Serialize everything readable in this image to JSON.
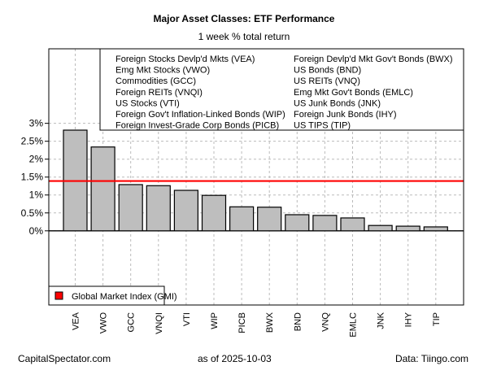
{
  "chart_data": {
    "type": "bar",
    "title": "Major Asset Classes: ETF Performance",
    "subtitle": "1 week % total return",
    "categories": [
      "VEA",
      "VWO",
      "GCC",
      "VNQI",
      "VTI",
      "WIP",
      "PICB",
      "BWX",
      "BND",
      "VNQ",
      "EMLC",
      "JNK",
      "IHY",
      "TIP"
    ],
    "values": [
      2.81,
      2.34,
      1.29,
      1.26,
      1.13,
      0.99,
      0.67,
      0.66,
      0.45,
      0.43,
      0.36,
      0.15,
      0.13,
      0.11
    ],
    "ylim": [
      -2.07,
      5.08
    ],
    "yticks": [
      0,
      0.5,
      1,
      1.5,
      2,
      2.5,
      3
    ],
    "ytick_labels": [
      "0%",
      "0.5%",
      "1%",
      "1.5%",
      "2%",
      "2.5%",
      "3%"
    ],
    "grid": true,
    "bar_color": "#bebebe",
    "reference_line": {
      "name": "Global Market Index (GMI)",
      "value": 1.39,
      "color": "#ff0000"
    },
    "legend_left": [
      "Foreign Stocks Devlp'd Mkts (VEA)",
      "Emg Mkt Stocks (VWO)",
      "Commodities (GCC)",
      "Foreign REITs (VNQI)",
      "US Stocks (VTI)",
      "Foreign Gov't Inflation-Linked Bonds (WIP)",
      "Foreign Invest-Grade Corp Bonds (PICB)"
    ],
    "legend_right": [
      "Foreign Devlp'd Mkt Gov't Bonds (BWX)",
      "US Bonds (BND)",
      "US REITs (VNQ)",
      "Emg Mkt Gov't Bonds (EMLC)",
      "US Junk Bonds (JNK)",
      "Foreign Junk Bonds (IHY)",
      "US TIPS (TIP)"
    ],
    "legend_placement": "top-right"
  },
  "footer": {
    "left": "CapitalSpectator.com",
    "center": "as of  2025-10-03",
    "right": "Data: Tiingo.com"
  }
}
